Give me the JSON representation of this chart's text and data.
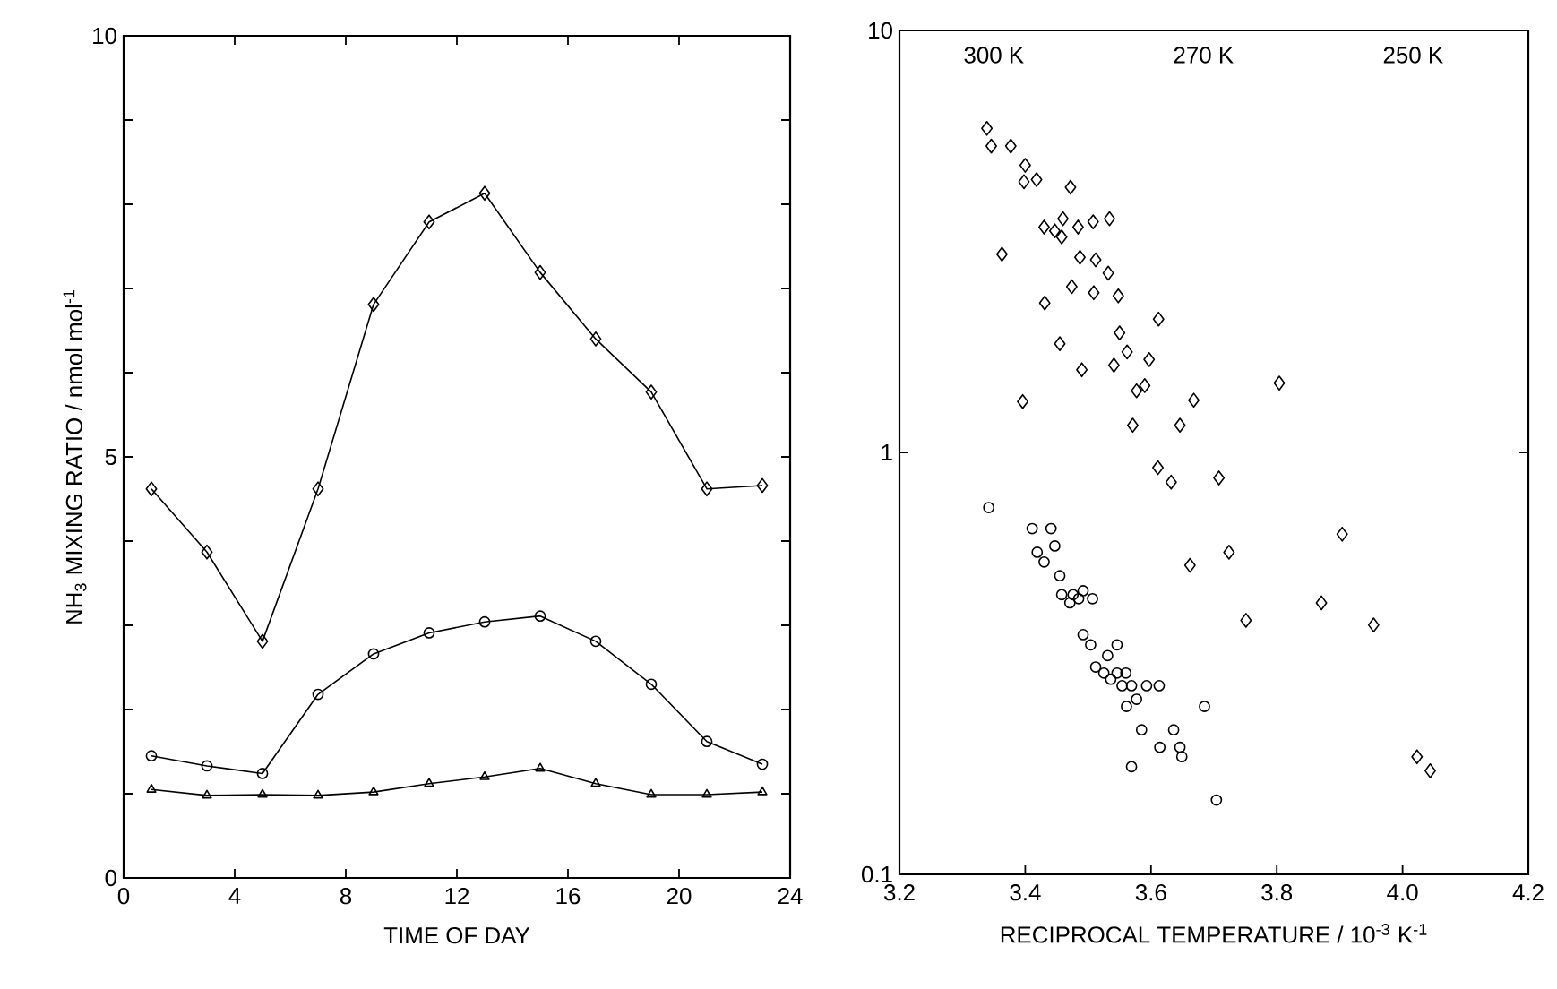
{
  "chart_data": [
    {
      "type": "line",
      "xlabel": "TIME OF DAY",
      "ylabel": "NH$_{3}$ MIXING RATIO / nmol mol$^{-1}$",
      "xlim": [
        0,
        24
      ],
      "xticks": [
        0,
        4,
        8,
        12,
        16,
        20,
        24
      ],
      "ylim": [
        0,
        10
      ],
      "yticks": [
        0,
        {
          "value": 1,
          "label": null
        },
        {
          "value": 2,
          "label": null
        },
        {
          "value": 3,
          "label": null
        },
        {
          "value": 4,
          "label": null
        },
        5,
        {
          "value": 6,
          "label": null
        },
        {
          "value": 7,
          "label": null
        },
        {
          "value": 8,
          "label": null
        },
        {
          "value": 9,
          "label": null
        },
        10
      ],
      "line_style": "solid",
      "series": [
        {
          "color": "#000000",
          "marker": "diamond",
          "x": [
            1,
            3,
            5,
            7,
            9,
            11,
            13,
            15,
            17,
            19,
            21,
            23
          ],
          "values": [
            4.62,
            3.87,
            2.81,
            4.62,
            6.81,
            7.79,
            8.13,
            7.19,
            6.4,
            5.77,
            4.62,
            4.66
          ]
        },
        {
          "color": "#000000",
          "marker": "circle",
          "x": [
            1,
            3,
            5,
            7,
            9,
            11,
            13,
            15,
            17,
            19,
            21,
            23
          ],
          "values": [
            1.45,
            1.33,
            1.24,
            2.18,
            2.66,
            2.91,
            3.04,
            3.11,
            2.81,
            2.3,
            1.62,
            1.35
          ]
        },
        {
          "color": "#000000",
          "marker": "triangle",
          "x": [
            1,
            3,
            5,
            7,
            9,
            11,
            13,
            15,
            17,
            19,
            21,
            23
          ],
          "values": [
            1.05,
            0.98,
            0.99,
            0.98,
            1.02,
            1.12,
            1.2,
            1.3,
            1.12,
            0.99,
            0.99,
            1.02
          ]
        }
      ]
    },
    {
      "type": "scatter",
      "xlabel": "RECIPROCAL TEMPERATURE / 10$^{-3}$ K$^{-1}$",
      "log": "y",
      "xlim": [
        3.2,
        4.2
      ],
      "xticks": [
        3.2,
        3.4,
        3.6,
        3.8,
        {
          "value": 4.0,
          "label": "4.0"
        },
        4.2
      ],
      "ylim": [
        0.1,
        10
      ],
      "yticks": [
        0.1,
        1,
        10
      ],
      "annotations": [
        "300 K",
        "270 K",
        "250 K"
      ],
      "series": [
        {
          "color": "#000000",
          "marker": "diamond",
          "x": [
            3.339,
            3.346,
            3.377,
            3.4,
            3.398,
            3.418,
            3.472,
            3.363,
            3.43,
            3.447,
            3.46,
            3.458,
            3.484,
            3.508,
            3.534,
            3.487,
            3.512,
            3.532,
            3.474,
            3.509,
            3.548,
            3.431,
            3.55,
            3.612,
            3.455,
            3.562,
            3.597,
            3.49,
            3.541,
            3.577,
            3.59,
            3.668,
            3.396,
            3.804,
            3.571,
            3.646,
            3.611,
            3.632,
            3.708,
            3.662,
            3.724,
            3.904,
            3.751,
            3.871,
            3.954,
            4.023,
            4.044
          ],
          "values": [
            5.86,
            5.32,
            5.32,
            4.79,
            4.38,
            4.43,
            4.25,
            2.95,
            3.42,
            3.35,
            3.58,
            3.24,
            3.42,
            3.52,
            3.58,
            2.9,
            2.86,
            2.66,
            2.47,
            2.39,
            2.35,
            2.26,
            1.92,
            2.07,
            1.81,
            1.73,
            1.66,
            1.57,
            1.61,
            1.4,
            1.44,
            1.33,
            1.32,
            1.46,
            1.16,
            1.16,
            0.92,
            0.85,
            0.87,
            0.54,
            0.58,
            0.64,
            0.4,
            0.44,
            0.39,
            0.19,
            0.176
          ]
        },
        {
          "color": "#000000",
          "marker": "circle",
          "x": [
            3.342,
            3.411,
            3.441,
            3.419,
            3.447,
            3.43,
            3.455,
            3.458,
            3.471,
            3.476,
            3.485,
            3.492,
            3.507,
            3.492,
            3.504,
            3.546,
            3.531,
            3.512,
            3.525,
            3.536,
            3.546,
            3.56,
            3.554,
            3.569,
            3.561,
            3.577,
            3.593,
            3.613,
            3.685,
            3.585,
            3.636,
            3.614,
            3.646,
            3.569,
            3.649,
            3.704
          ],
          "values": [
            0.74,
            0.66,
            0.66,
            0.58,
            0.6,
            0.55,
            0.51,
            0.46,
            0.44,
            0.46,
            0.45,
            0.47,
            0.45,
            0.37,
            0.35,
            0.35,
            0.33,
            0.31,
            0.3,
            0.29,
            0.3,
            0.3,
            0.28,
            0.28,
            0.25,
            0.26,
            0.28,
            0.28,
            0.25,
            0.22,
            0.22,
            0.2,
            0.2,
            0.18,
            0.19,
            0.15
          ]
        }
      ]
    }
  ]
}
